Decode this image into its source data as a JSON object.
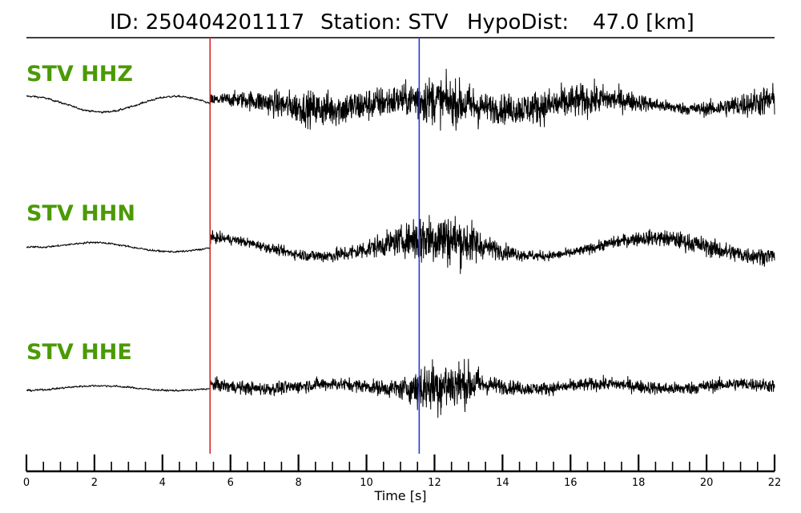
{
  "chart_data": {
    "type": "line",
    "title": {
      "id_label": "ID: 250404201117",
      "station_label": "Station: STV",
      "hypodist_label": "HypoDist:",
      "hypodist_value": "47.0 [km]"
    },
    "xlabel": "Time [s]",
    "xlim": [
      0,
      22
    ],
    "x_major_ticks": [
      0,
      2,
      4,
      6,
      8,
      10,
      12,
      14,
      16,
      18,
      20,
      22
    ],
    "x_minor_tick_step": 0.5,
    "grid": false,
    "picks": [
      {
        "phase": "P",
        "time_s": 5.4,
        "color": "#d62728"
      },
      {
        "phase": "S",
        "time_s": 11.55,
        "color": "#1f3fd6"
      }
    ],
    "label_color": "#4b9a06",
    "trace_color": "#000000",
    "series": [
      {
        "name": "STV HHZ",
        "pre_event_amplitude": 0.13,
        "post_event_amplitude": 0.55,
        "peak_time_s": 12.0
      },
      {
        "name": "STV HHN",
        "pre_event_amplitude": 0.04,
        "post_event_amplitude": 0.4,
        "peak_time_s": 12.0
      },
      {
        "name": "STV HHE",
        "pre_event_amplitude": 0.05,
        "post_event_amplitude": 0.35,
        "peak_time_s": 12.0
      }
    ]
  }
}
